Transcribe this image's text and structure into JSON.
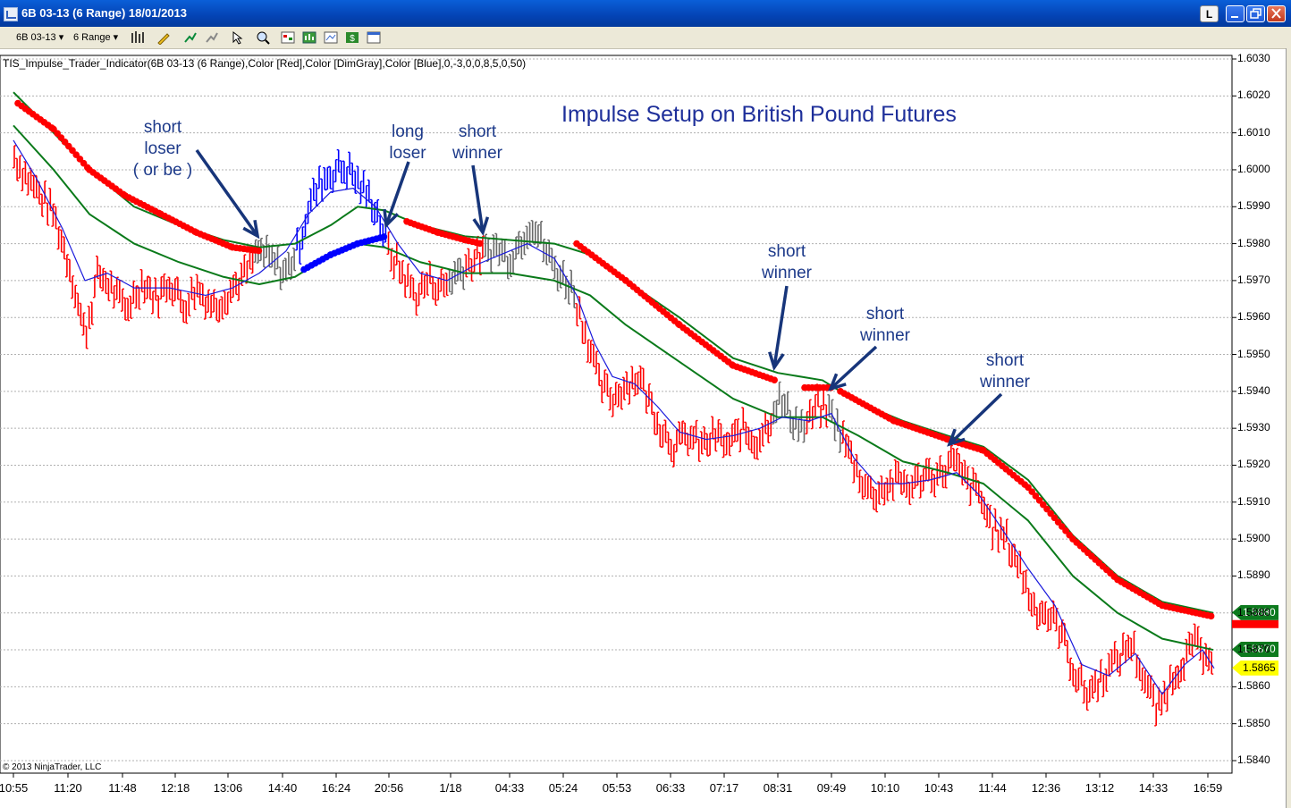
{
  "window": {
    "title": "6B 03-13 (6 Range)  18/01/2013",
    "link_button": "L"
  },
  "toolbar": {
    "instrument": "6B 03-13",
    "bar_type": "6 Range",
    "icons": [
      "bar-style-icon",
      "drawing-pencil-icon",
      "indicator-icon",
      "strategy-icon",
      "cursor-icon",
      "zoom-icon",
      "chart-trader-icon",
      "data-box-icon",
      "properties-icon",
      "dollar-icon",
      "window-icon"
    ]
  },
  "indicator_label": "TIS_Impulse_Trader_Indicator(6B 03-13 (6 Range),Color [Red],Color [DimGray],Color [Blue],0,-3,0,0,8,5,0,50)",
  "copyright": "© 2013 NinjaTrader, LLC",
  "annotations": {
    "chart_title": "Impulse Setup on British Pound Futures",
    "a1": [
      "short",
      "loser",
      "( or be )"
    ],
    "a2": [
      "long",
      "loser"
    ],
    "a3": [
      "short",
      "winner"
    ],
    "a4": [
      "short",
      "winner"
    ],
    "a5": [
      "short",
      "winner"
    ],
    "a6": [
      "short",
      "winner"
    ]
  },
  "price_tags": [
    {
      "label": "1.5880",
      "bg": "#0d7a1e",
      "fg": "#ffffff"
    },
    {
      "label": "1.5870",
      "bg": "#0d7a1e",
      "fg": "#ffffff"
    },
    {
      "label": "1.5865",
      "bg": "#ffff00",
      "fg": "#000000"
    }
  ],
  "colors": {
    "up_down_bar": "#ff0000",
    "neutral_bar": "#696969",
    "long_bar": "#0000ff",
    "ema_fast": "#1a1adc",
    "ema_slow": "#0a7a1a",
    "impulse_dot_short": "#ff0000",
    "impulse_dot_long": "#0000ff"
  },
  "chart_data": {
    "type": "line",
    "title": "Impulse Setup on British Pound Futures",
    "y_ticks": [
      "1.6030",
      "1.6020",
      "1.6010",
      "1.6000",
      "1.5990",
      "1.5980",
      "1.5970",
      "1.5960",
      "1.5950",
      "1.5940",
      "1.5930",
      "1.5920",
      "1.5910",
      "1.5900",
      "1.5890",
      "1.5880",
      "1.5870",
      "1.5860",
      "1.5850",
      "1.5840"
    ],
    "ylim": [
      1.5837,
      1.6032
    ],
    "x_ticks": [
      "10:55",
      "11:20",
      "11:48",
      "12:18",
      "13:06",
      "14:40",
      "16:24",
      "20:56",
      "1/18",
      "04:33",
      "05:24",
      "05:53",
      "06:33",
      "07:17",
      "08:31",
      "09:49",
      "10:10",
      "10:43",
      "11:44",
      "12:36",
      "13:12",
      "14:33",
      "16:59"
    ],
    "grid": true,
    "series": [],
    "price_path": [
      [
        0,
        1.601
      ],
      [
        30,
        1.5998
      ],
      [
        60,
        1.5988
      ],
      [
        80,
        1.5972
      ],
      [
        95,
        1.5955
      ],
      [
        110,
        1.5972
      ],
      [
        125,
        1.5968
      ],
      [
        140,
        1.5962
      ],
      [
        160,
        1.597
      ],
      [
        175,
        1.5965
      ],
      [
        190,
        1.597
      ],
      [
        205,
        1.5963
      ],
      [
        220,
        1.5968
      ],
      [
        240,
        1.5963
      ],
      [
        260,
        1.5968
      ],
      [
        275,
        1.5972
      ],
      [
        290,
        1.5978
      ],
      [
        305,
        1.5975
      ],
      [
        320,
        1.5972
      ],
      [
        335,
        1.598
      ],
      [
        345,
        1.599
      ],
      [
        360,
        1.5997
      ],
      [
        375,
        1.6
      ],
      [
        390,
        1.6
      ],
      [
        405,
        1.5995
      ],
      [
        420,
        1.599
      ],
      [
        435,
        1.5978
      ],
      [
        450,
        1.5972
      ],
      [
        465,
        1.5966
      ],
      [
        480,
        1.597
      ],
      [
        495,
        1.5968
      ],
      [
        510,
        1.5972
      ],
      [
        525,
        1.5975
      ],
      [
        540,
        1.5977
      ],
      [
        555,
        1.5979
      ],
      [
        570,
        1.5976
      ],
      [
        585,
        1.5982
      ],
      [
        595,
        1.5986
      ],
      [
        610,
        1.5978
      ],
      [
        625,
        1.5972
      ],
      [
        640,
        1.5968
      ],
      [
        650,
        1.596
      ],
      [
        660,
        1.5952
      ],
      [
        670,
        1.5942
      ],
      [
        685,
        1.5938
      ],
      [
        700,
        1.5942
      ],
      [
        715,
        1.5944
      ],
      [
        725,
        1.5938
      ],
      [
        740,
        1.593
      ],
      [
        755,
        1.5925
      ],
      [
        770,
        1.5928
      ],
      [
        785,
        1.5925
      ],
      [
        800,
        1.5928
      ],
      [
        815,
        1.5925
      ],
      [
        830,
        1.593
      ],
      [
        845,
        1.5926
      ],
      [
        860,
        1.5932
      ],
      [
        870,
        1.5938
      ],
      [
        885,
        1.5933
      ],
      [
        900,
        1.593
      ],
      [
        915,
        1.5936
      ],
      [
        930,
        1.5934
      ],
      [
        945,
        1.5926
      ],
      [
        960,
        1.5918
      ],
      [
        975,
        1.5912
      ],
      [
        990,
        1.5914
      ],
      [
        1005,
        1.5916
      ],
      [
        1020,
        1.5914
      ],
      [
        1035,
        1.5918
      ],
      [
        1050,
        1.5917
      ],
      [
        1065,
        1.5921
      ],
      [
        1080,
        1.5916
      ],
      [
        1095,
        1.5912
      ],
      [
        1110,
        1.5903
      ],
      [
        1125,
        1.59
      ],
      [
        1140,
        1.5893
      ],
      [
        1155,
        1.5882
      ],
      [
        1170,
        1.588
      ],
      [
        1185,
        1.5876
      ],
      [
        1200,
        1.5865
      ],
      [
        1215,
        1.5858
      ],
      [
        1230,
        1.5862
      ],
      [
        1245,
        1.5866
      ],
      [
        1265,
        1.5872
      ],
      [
        1280,
        1.5862
      ],
      [
        1295,
        1.5853
      ],
      [
        1310,
        1.5862
      ],
      [
        1325,
        1.5868
      ],
      [
        1340,
        1.5872
      ],
      [
        1350,
        1.5865
      ],
      [
        1358,
        1.5864
      ]
    ],
    "bar_color_regions": [
      {
        "from": 0,
        "to": 285,
        "color": "red"
      },
      {
        "from": 285,
        "to": 332,
        "color": "gray"
      },
      {
        "from": 332,
        "to": 432,
        "color": "blue"
      },
      {
        "from": 432,
        "to": 500,
        "color": "red"
      },
      {
        "from": 500,
        "to": 520,
        "color": "gray"
      },
      {
        "from": 520,
        "to": 540,
        "color": "red"
      },
      {
        "from": 540,
        "to": 645,
        "color": "gray"
      },
      {
        "from": 645,
        "to": 865,
        "color": "red"
      },
      {
        "from": 865,
        "to": 900,
        "color": "gray"
      },
      {
        "from": 900,
        "to": 925,
        "color": "red"
      },
      {
        "from": 925,
        "to": 940,
        "color": "gray"
      },
      {
        "from": 940,
        "to": 1358,
        "color": "red"
      }
    ],
    "dot_segments": [
      {
        "color": "red",
        "points": [
          [
            20,
            1.6018
          ],
          [
            60,
            1.6011
          ],
          [
            100,
            1.6
          ],
          [
            140,
            1.5993
          ],
          [
            180,
            1.5988
          ],
          [
            220,
            1.5983
          ],
          [
            260,
            1.5979
          ],
          [
            292,
            1.5978
          ]
        ]
      },
      {
        "color": "blue",
        "points": [
          [
            340,
            1.5973
          ],
          [
            370,
            1.5977
          ],
          [
            400,
            1.598
          ],
          [
            432,
            1.5982
          ]
        ]
      },
      {
        "color": "red",
        "points": [
          [
            455,
            1.5986
          ],
          [
            490,
            1.5983
          ],
          [
            520,
            1.5981
          ],
          [
            538,
            1.598
          ]
        ]
      },
      {
        "color": "red",
        "points": [
          [
            645,
            1.598
          ],
          [
            700,
            1.597
          ],
          [
            760,
            1.5958
          ],
          [
            820,
            1.5947
          ],
          [
            867,
            1.5943
          ]
        ]
      },
      {
        "color": "red",
        "points": [
          [
            900,
            1.5941
          ],
          [
            930,
            1.5941
          ]
        ]
      },
      {
        "color": "red",
        "points": [
          [
            940,
            1.594
          ],
          [
            1000,
            1.5932
          ],
          [
            1060,
            1.5927
          ],
          [
            1100,
            1.5924
          ],
          [
            1150,
            1.5914
          ],
          [
            1200,
            1.59
          ],
          [
            1250,
            1.5889
          ],
          [
            1300,
            1.5882
          ],
          [
            1357,
            1.5879
          ]
        ]
      }
    ],
    "ema_fast": [
      [
        15,
        1.6008
      ],
      [
        40,
        1.5998
      ],
      [
        70,
        1.5984
      ],
      [
        95,
        1.597
      ],
      [
        120,
        1.5972
      ],
      [
        150,
        1.5968
      ],
      [
        190,
        1.5968
      ],
      [
        230,
        1.5966
      ],
      [
        260,
        1.5968
      ],
      [
        290,
        1.5972
      ],
      [
        320,
        1.5978
      ],
      [
        345,
        1.5988
      ],
      [
        370,
        1.5994
      ],
      [
        395,
        1.5995
      ],
      [
        420,
        1.599
      ],
      [
        445,
        1.598
      ],
      [
        470,
        1.5972
      ],
      [
        500,
        1.597
      ],
      [
        530,
        1.5974
      ],
      [
        560,
        1.5977
      ],
      [
        590,
        1.598
      ],
      [
        620,
        1.5976
      ],
      [
        645,
        1.5966
      ],
      [
        665,
        1.5953
      ],
      [
        685,
        1.5944
      ],
      [
        710,
        1.5942
      ],
      [
        735,
        1.5936
      ],
      [
        760,
        1.5929
      ],
      [
        790,
        1.5927
      ],
      [
        820,
        1.5928
      ],
      [
        850,
        1.593
      ],
      [
        875,
        1.5933
      ],
      [
        905,
        1.5932
      ],
      [
        930,
        1.5934
      ],
      [
        955,
        1.5922
      ],
      [
        980,
        1.5915
      ],
      [
        1010,
        1.5915
      ],
      [
        1040,
        1.5916
      ],
      [
        1070,
        1.5918
      ],
      [
        1095,
        1.5912
      ],
      [
        1120,
        1.5903
      ],
      [
        1150,
        1.5892
      ],
      [
        1180,
        1.5882
      ],
      [
        1210,
        1.5866
      ],
      [
        1240,
        1.5863
      ],
      [
        1270,
        1.5869
      ],
      [
        1300,
        1.5858
      ],
      [
        1325,
        1.5866
      ],
      [
        1345,
        1.587
      ],
      [
        1358,
        1.5865
      ]
    ],
    "ema_slow_upper": [
      [
        15,
        1.6021
      ],
      [
        60,
        1.601
      ],
      [
        100,
        1.6
      ],
      [
        150,
        1.599
      ],
      [
        200,
        1.5985
      ],
      [
        250,
        1.5981
      ],
      [
        290,
        1.5979
      ],
      [
        330,
        1.598
      ],
      [
        370,
        1.5985
      ],
      [
        400,
        1.599
      ],
      [
        430,
        1.5989
      ],
      [
        470,
        1.5985
      ],
      [
        520,
        1.5982
      ],
      [
        570,
        1.5981
      ],
      [
        620,
        1.598
      ],
      [
        660,
        1.5977
      ],
      [
        700,
        1.597
      ],
      [
        760,
        1.596
      ],
      [
        820,
        1.5949
      ],
      [
        870,
        1.5945
      ],
      [
        920,
        1.5943
      ],
      [
        960,
        1.5937
      ],
      [
        1010,
        1.5932
      ],
      [
        1060,
        1.5928
      ],
      [
        1100,
        1.5925
      ],
      [
        1150,
        1.5916
      ],
      [
        1200,
        1.5901
      ],
      [
        1250,
        1.589
      ],
      [
        1300,
        1.5883
      ],
      [
        1357,
        1.588
      ]
    ],
    "ema_slow_lower": [
      [
        15,
        1.6012
      ],
      [
        60,
        1.6
      ],
      [
        100,
        1.5988
      ],
      [
        150,
        1.598
      ],
      [
        200,
        1.5975
      ],
      [
        250,
        1.5971
      ],
      [
        290,
        1.5969
      ],
      [
        330,
        1.5971
      ],
      [
        370,
        1.5977
      ],
      [
        400,
        1.598
      ],
      [
        430,
        1.5979
      ],
      [
        470,
        1.5975
      ],
      [
        520,
        1.5972
      ],
      [
        570,
        1.5972
      ],
      [
        620,
        1.597
      ],
      [
        660,
        1.5966
      ],
      [
        700,
        1.5958
      ],
      [
        760,
        1.5948
      ],
      [
        820,
        1.5938
      ],
      [
        870,
        1.5933
      ],
      [
        920,
        1.5933
      ],
      [
        960,
        1.5928
      ],
      [
        1010,
        1.5921
      ],
      [
        1060,
        1.5918
      ],
      [
        1100,
        1.5915
      ],
      [
        1150,
        1.5905
      ],
      [
        1200,
        1.589
      ],
      [
        1250,
        1.588
      ],
      [
        1300,
        1.5873
      ],
      [
        1357,
        1.587
      ]
    ]
  }
}
